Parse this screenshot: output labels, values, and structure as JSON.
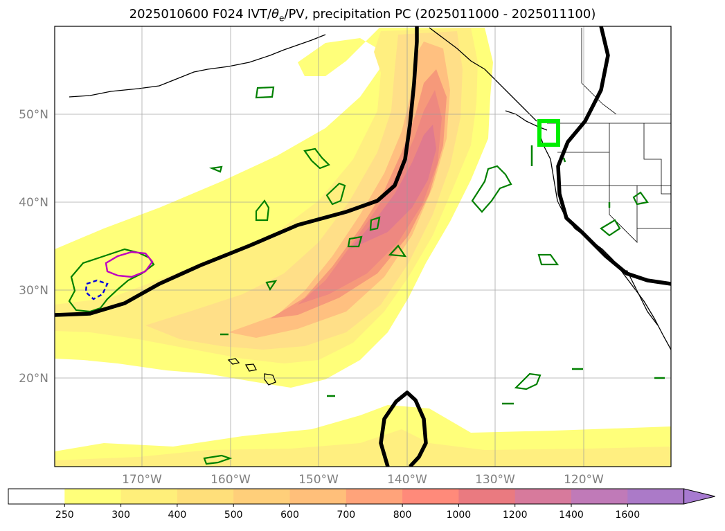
{
  "title": {
    "prefix": "2025010600 F024 IVT/",
    "theta": "θ",
    "theta_sub": "e",
    "suffix": "/PV, precipitation PC (2025011000 - 2025011100)"
  },
  "lat_labels": [
    "50°N",
    "40°N",
    "30°N",
    "20°N"
  ],
  "lon_labels": [
    "170°W",
    "160°W",
    "150°W",
    "140°W",
    "130°W",
    "120°W"
  ],
  "colorbar": {
    "labels": [
      "250",
      "300",
      "400",
      "500",
      "600",
      "700",
      "800",
      "1000",
      "1200",
      "1400",
      "1600"
    ],
    "colors": [
      "#ffffff",
      "#ffff7a",
      "#ffef7a",
      "#ffdf7a",
      "#ffcf7a",
      "#ffbf7a",
      "#ffa37a",
      "#ff8a7a",
      "#ea7a80",
      "#d77a9c",
      "#c07ab8",
      "#ab7ac8"
    ],
    "extend_color": "#a77ad0"
  },
  "colors": {
    "ivt_light": "#ffff7a",
    "ivt_mid": "#ffd98a",
    "ivt_orange": "#ffb07a",
    "ivt_red": "#f48a7e",
    "ivt_core": "#e57a8c",
    "pv_line": "#000000",
    "precip_green": "#008000",
    "box_green": "#00ee00",
    "theta_magenta": "#c000c0",
    "theta_blue": "#0000dd"
  }
}
